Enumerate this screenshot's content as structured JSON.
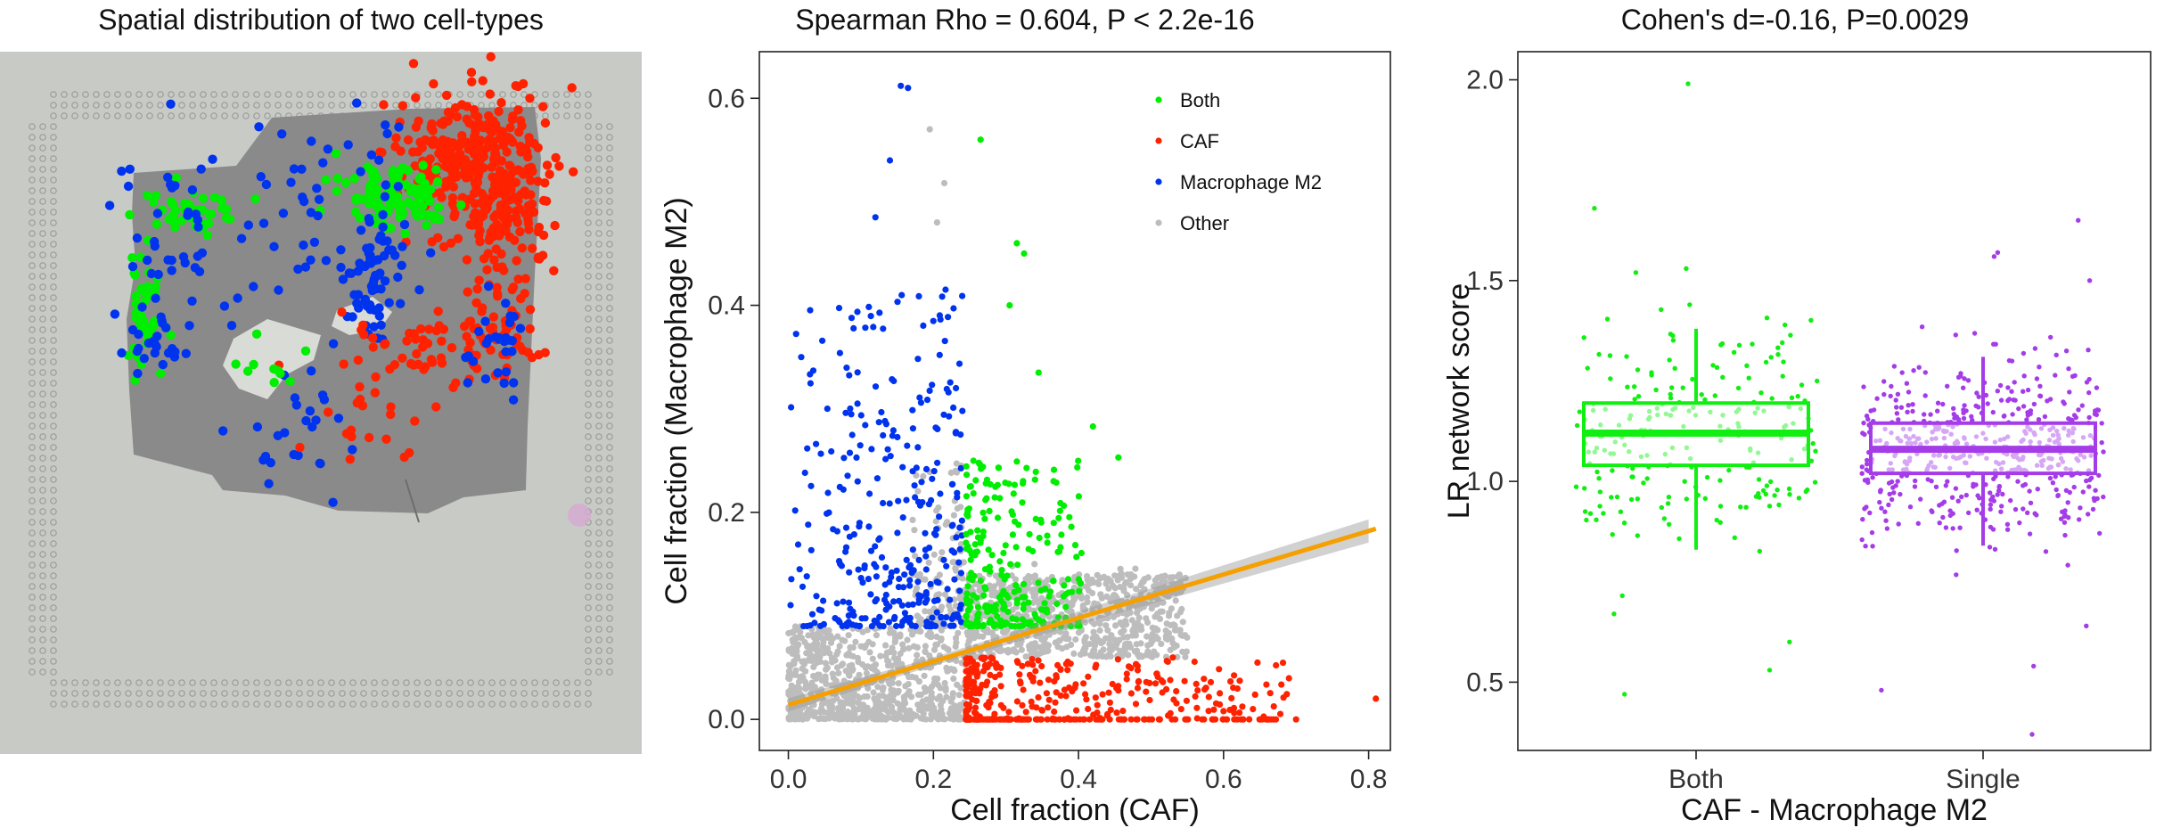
{
  "panels": {
    "a_title": "Spatial distribution of two cell-types",
    "b_title": "Spearman Rho = 0.604, P  < 2.2e-16",
    "c_title": "Cohen's d=-0.16, P=0.0029"
  },
  "colors": {
    "both": "#00ee00",
    "caf": "#ff2200",
    "macrophage": "#0033ee",
    "other": "#bdbdbd",
    "fit_line": "#f5a000",
    "box_both": "#11ee11",
    "box_single": "#a43ce8",
    "tissue": "#8a8a8a",
    "slide": "#c8cac6"
  },
  "chart_data": [
    {
      "type": "scatter",
      "panel": "spatial",
      "title": "Spatial distribution of two cell-types",
      "series": [
        {
          "name": "Both",
          "color_key": "both"
        },
        {
          "name": "CAF",
          "color_key": "caf"
        },
        {
          "name": "Macrophage M2",
          "color_key": "macrophage"
        }
      ]
    },
    {
      "type": "scatter",
      "panel": "correlation",
      "title": "Spearman Rho = 0.604, P  < 2.2e-16",
      "xlabel": "Cell fraction (CAF)",
      "ylabel": "Cell fraction (Macrophage M2)",
      "xlim": [
        -0.04,
        0.83
      ],
      "ylim": [
        -0.03,
        0.645
      ],
      "xticks": [
        0.0,
        0.2,
        0.4,
        0.6,
        0.8
      ],
      "xtick_labels": [
        "0.0",
        "0.2",
        "0.4",
        "0.6",
        "0.8"
      ],
      "yticks": [
        0.0,
        0.2,
        0.4,
        0.6
      ],
      "ytick_labels": [
        "0.0",
        "0.2",
        "0.4",
        "0.6"
      ],
      "legend_position": "top-right",
      "series": [
        {
          "name": "Both",
          "color_key": "both"
        },
        {
          "name": "CAF",
          "color_key": "caf"
        },
        {
          "name": "Macrophage M2",
          "color_key": "macrophage"
        },
        {
          "name": "Other",
          "color_key": "other"
        }
      ],
      "threshold_x": 0.245,
      "threshold_y": 0.09,
      "fit": {
        "intercept": 0.014,
        "slope": 0.21,
        "x_range": [
          0.0,
          0.81
        ]
      },
      "highlight_points": [
        {
          "series": "Macrophage M2",
          "x": 0.155,
          "y": 0.612
        },
        {
          "series": "Macrophage M2",
          "x": 0.165,
          "y": 0.61
        },
        {
          "series": "Macrophage M2",
          "x": 0.14,
          "y": 0.54
        },
        {
          "series": "Macrophage M2",
          "x": 0.12,
          "y": 0.485
        },
        {
          "series": "Other",
          "x": 0.195,
          "y": 0.57
        },
        {
          "series": "Other",
          "x": 0.205,
          "y": 0.48
        },
        {
          "series": "Other",
          "x": 0.215,
          "y": 0.518
        },
        {
          "series": "Both",
          "x": 0.265,
          "y": 0.56
        },
        {
          "series": "Both",
          "x": 0.315,
          "y": 0.46
        },
        {
          "series": "Both",
          "x": 0.325,
          "y": 0.45
        },
        {
          "series": "Both",
          "x": 0.305,
          "y": 0.4
        },
        {
          "series": "Both",
          "x": 0.345,
          "y": 0.335
        },
        {
          "series": "Both",
          "x": 0.42,
          "y": 0.283
        },
        {
          "series": "Both",
          "x": 0.455,
          "y": 0.253
        },
        {
          "series": "CAF",
          "x": 0.81,
          "y": 0.02
        },
        {
          "series": "CAF",
          "x": 0.7,
          "y": 0.0
        },
        {
          "series": "CAF",
          "x": 0.66,
          "y": 0.0
        },
        {
          "series": "CAF",
          "x": 0.6,
          "y": 0.008
        }
      ]
    },
    {
      "type": "box",
      "panel": "lr_score",
      "title": "Cohen's d=-0.16, P=0.0029",
      "xlabel": "CAF - Macrophage M2",
      "ylabel": "LR network score",
      "categories": [
        "Both",
        "Single"
      ],
      "ylim": [
        0.33,
        2.07
      ],
      "yticks": [
        0.5,
        1.0,
        1.5,
        2.0
      ],
      "ytick_labels": [
        "0.5",
        "1.0",
        "1.5",
        "2.0"
      ],
      "series": [
        {
          "name": "Both",
          "color_key": "box_both",
          "whisker_low": 0.83,
          "q1": 1.04,
          "median": 1.12,
          "q3": 1.195,
          "whisker_high": 1.38,
          "outliers": [
            1.99,
            1.68,
            1.53,
            1.52,
            0.47,
            0.53,
            0.6,
            0.67
          ]
        },
        {
          "name": "Single",
          "color_key": "box_single",
          "whisker_low": 0.84,
          "q1": 1.02,
          "median": 1.08,
          "q3": 1.145,
          "whisker_high": 1.31,
          "outliers": [
            1.65,
            1.57,
            1.56,
            1.5,
            0.54,
            0.48,
            0.37,
            0.64
          ]
        }
      ]
    }
  ]
}
